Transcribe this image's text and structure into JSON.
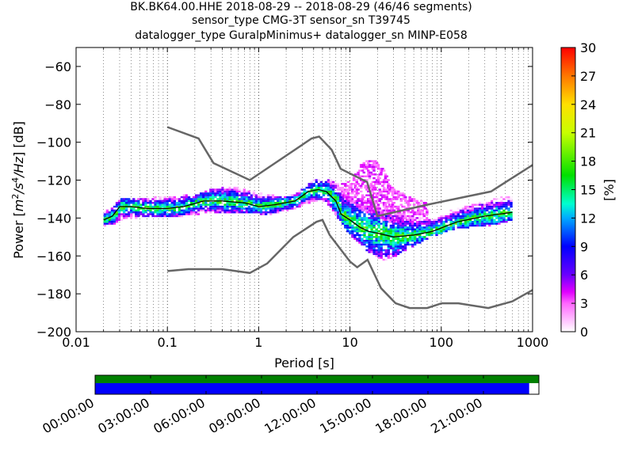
{
  "title": {
    "line1": "BK.BK64.00.HHE   2018-08-29 -- 2018-08-29  (46/46 segments)",
    "line2": "sensor_type CMG-3T sensor_sn T39745",
    "line3": "datalogger_type GuralpMinimus+ datalogger_sn MINP-E058"
  },
  "chart_data": {
    "type": "heatmap",
    "x_label": "Period [s]",
    "y_label_parts": [
      "Power [",
      "m",
      "2",
      "/",
      "s",
      "4",
      "/",
      "Hz",
      "] [dB]"
    ],
    "x_scale": "log",
    "x_range": [
      0.01,
      1000
    ],
    "x_ticks": [
      {
        "value": 0.01,
        "label": "0.01"
      },
      {
        "value": 0.1,
        "label": "0.1"
      },
      {
        "value": 1,
        "label": "1"
      },
      {
        "value": 10,
        "label": "10"
      },
      {
        "value": 100,
        "label": "100"
      },
      {
        "value": 1000,
        "label": "1000"
      }
    ],
    "y_range": [
      -200,
      -50
    ],
    "y_ticks": [
      {
        "value": -60,
        "label": "−60"
      },
      {
        "value": -80,
        "label": "−80"
      },
      {
        "value": -100,
        "label": "−100"
      },
      {
        "value": -120,
        "label": "−120"
      },
      {
        "value": -140,
        "label": "−140"
      },
      {
        "value": -160,
        "label": "−160"
      },
      {
        "value": -180,
        "label": "−180"
      },
      {
        "value": -200,
        "label": "−200"
      }
    ],
    "colorbar": {
      "label": "[%]",
      "range": [
        0,
        30
      ],
      "ticks": [
        {
          "value": 0,
          "label": "0"
        },
        {
          "value": 3,
          "label": "3"
        },
        {
          "value": 6,
          "label": "6"
        },
        {
          "value": 9,
          "label": "9"
        },
        {
          "value": 12,
          "label": "12"
        },
        {
          "value": 15,
          "label": "15"
        },
        {
          "value": 18,
          "label": "18"
        },
        {
          "value": 21,
          "label": "21"
        },
        {
          "value": 24,
          "label": "24"
        },
        {
          "value": 27,
          "label": "27"
        },
        {
          "value": 30,
          "label": "30"
        }
      ]
    },
    "reference_model_color": "#666666",
    "high_noise_model": [
      [
        0.1,
        -92
      ],
      [
        0.22,
        -98
      ],
      [
        0.32,
        -111
      ],
      [
        0.8,
        -120
      ],
      [
        3.8,
        -98
      ],
      [
        4.6,
        -97
      ],
      [
        6.3,
        -104
      ],
      [
        7.9,
        -114
      ],
      [
        15.4,
        -121
      ],
      [
        20,
        -139
      ],
      [
        70,
        -133
      ],
      [
        350,
        -126
      ],
      [
        1000,
        -112
      ]
    ],
    "low_noise_model": [
      [
        0.1,
        -168
      ],
      [
        0.17,
        -167
      ],
      [
        0.4,
        -167
      ],
      [
        0.8,
        -169
      ],
      [
        1.24,
        -164
      ],
      [
        2.4,
        -150
      ],
      [
        4.3,
        -142
      ],
      [
        5.0,
        -141
      ],
      [
        6.0,
        -149
      ],
      [
        10,
        -163
      ],
      [
        12,
        -166
      ],
      [
        15.6,
        -162
      ],
      [
        21.9,
        -177
      ],
      [
        31.6,
        -185
      ],
      [
        45,
        -187.5
      ],
      [
        70,
        -187.5
      ],
      [
        101,
        -185
      ],
      [
        154,
        -185
      ],
      [
        328,
        -187.5
      ],
      [
        600,
        -184
      ],
      [
        1000,
        -178
      ]
    ],
    "median_curve": [
      [
        0.02,
        -141
      ],
      [
        0.025,
        -139
      ],
      [
        0.03,
        -134
      ],
      [
        0.04,
        -134
      ],
      [
        0.06,
        -135
      ],
      [
        0.1,
        -135
      ],
      [
        0.15,
        -134
      ],
      [
        0.25,
        -131
      ],
      [
        0.4,
        -131
      ],
      [
        0.7,
        -132
      ],
      [
        1,
        -134
      ],
      [
        1.5,
        -133
      ],
      [
        2.5,
        -131
      ],
      [
        3.5,
        -126
      ],
      [
        4.5,
        -125
      ],
      [
        5.5,
        -126
      ],
      [
        7,
        -131
      ],
      [
        8,
        -138
      ],
      [
        10,
        -141
      ],
      [
        13,
        -145
      ],
      [
        16,
        -147
      ],
      [
        20,
        -148
      ],
      [
        30,
        -150
      ],
      [
        50,
        -149
      ],
      [
        80,
        -147
      ],
      [
        150,
        -142
      ],
      [
        300,
        -139
      ],
      [
        600,
        -137
      ]
    ],
    "psd_band": {
      "description": "probabilistic power spectral density density band",
      "upper": [
        [
          0.02,
          -137
        ],
        [
          0.025,
          -134
        ],
        [
          0.03,
          -130
        ],
        [
          0.05,
          -130
        ],
        [
          0.1,
          -129
        ],
        [
          0.2,
          -128
        ],
        [
          0.3,
          -125
        ],
        [
          0.5,
          -124
        ],
        [
          0.8,
          -126
        ],
        [
          1.2,
          -128
        ],
        [
          2,
          -129
        ],
        [
          3,
          -125
        ],
        [
          4,
          -120
        ],
        [
          5,
          -121
        ],
        [
          6,
          -120
        ],
        [
          8,
          -124
        ],
        [
          10,
          -128
        ],
        [
          15,
          -132
        ],
        [
          20,
          -135
        ],
        [
          30,
          -139
        ],
        [
          50,
          -139
        ],
        [
          80,
          -138
        ],
        [
          150,
          -134
        ],
        [
          300,
          -131
        ],
        [
          600,
          -128
        ]
      ],
      "lower": [
        [
          0.02,
          -144
        ],
        [
          0.025,
          -143
        ],
        [
          0.03,
          -141
        ],
        [
          0.05,
          -139
        ],
        [
          0.1,
          -139
        ],
        [
          0.2,
          -138
        ],
        [
          0.3,
          -137
        ],
        [
          0.5,
          -137
        ],
        [
          0.8,
          -137
        ],
        [
          1.2,
          -138
        ],
        [
          2,
          -136
        ],
        [
          3,
          -133
        ],
        [
          4,
          -131
        ],
        [
          5,
          -131
        ],
        [
          6,
          -134
        ],
        [
          8,
          -143
        ],
        [
          10,
          -149
        ],
        [
          13,
          -154
        ],
        [
          16,
          -158
        ],
        [
          20,
          -161
        ],
        [
          25,
          -162
        ],
        [
          35,
          -158
        ],
        [
          50,
          -154
        ],
        [
          80,
          -149
        ],
        [
          150,
          -145
        ],
        [
          300,
          -144
        ],
        [
          600,
          -141
        ]
      ]
    },
    "outlier_band": {
      "description": "sparse low-percentage outliers",
      "upper": [
        [
          8,
          -122
        ],
        [
          10,
          -120
        ],
        [
          13,
          -111
        ],
        [
          18,
          -108
        ],
        [
          22,
          -113
        ],
        [
          30,
          -125
        ],
        [
          45,
          -129
        ],
        [
          70,
          -131
        ]
      ],
      "lower": [
        [
          8,
          -128
        ],
        [
          10,
          -132
        ],
        [
          13,
          -135
        ],
        [
          18,
          -138
        ],
        [
          22,
          -140
        ],
        [
          30,
          -142
        ],
        [
          45,
          -140
        ],
        [
          70,
          -138
        ]
      ]
    },
    "timeline": {
      "time_ticks": [
        "00:00:00",
        "03:00:00",
        "06:00:00",
        "09:00:00",
        "12:00:00",
        "15:00:00",
        "18:00:00",
        "21:00:00"
      ],
      "data_coverage_fraction": 1.0,
      "data_color": "#008000",
      "psd_coverage_fraction": 0.978,
      "psd_color": "#0000ff"
    }
  }
}
